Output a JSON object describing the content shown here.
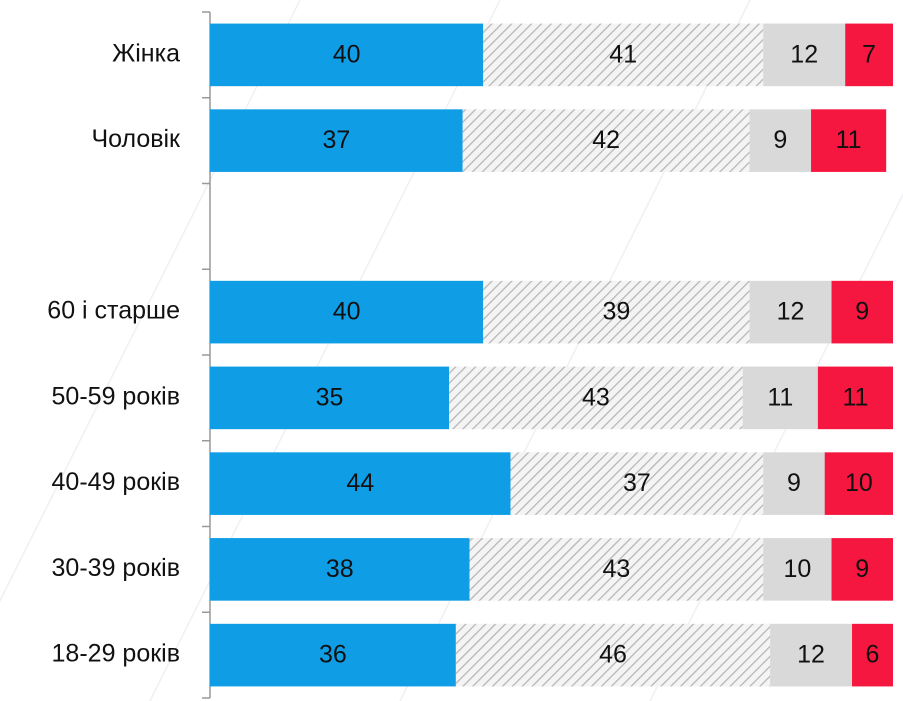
{
  "chart_data": {
    "type": "stacked-bar",
    "orientation": "horizontal",
    "categories": [
      "Жінка",
      "Чоловік",
      null,
      "60 і старше",
      "50-59 років",
      "40-49 років",
      "30-39 років",
      "18-29 років"
    ],
    "series": [
      {
        "color": "#0f9ee6",
        "values": [
          40,
          37,
          null,
          40,
          35,
          44,
          38,
          36
        ]
      },
      {
        "color": "#bdbdbd",
        "pattern": "hatch",
        "values": [
          41,
          42,
          null,
          39,
          43,
          37,
          43,
          46
        ]
      },
      {
        "color": "#d9d9d9",
        "values": [
          12,
          9,
          null,
          12,
          11,
          9,
          10,
          12
        ]
      },
      {
        "color": "#f5173f",
        "values": [
          7,
          11,
          null,
          9,
          11,
          10,
          9,
          6
        ]
      }
    ],
    "xlim": [
      0,
      100
    ]
  }
}
